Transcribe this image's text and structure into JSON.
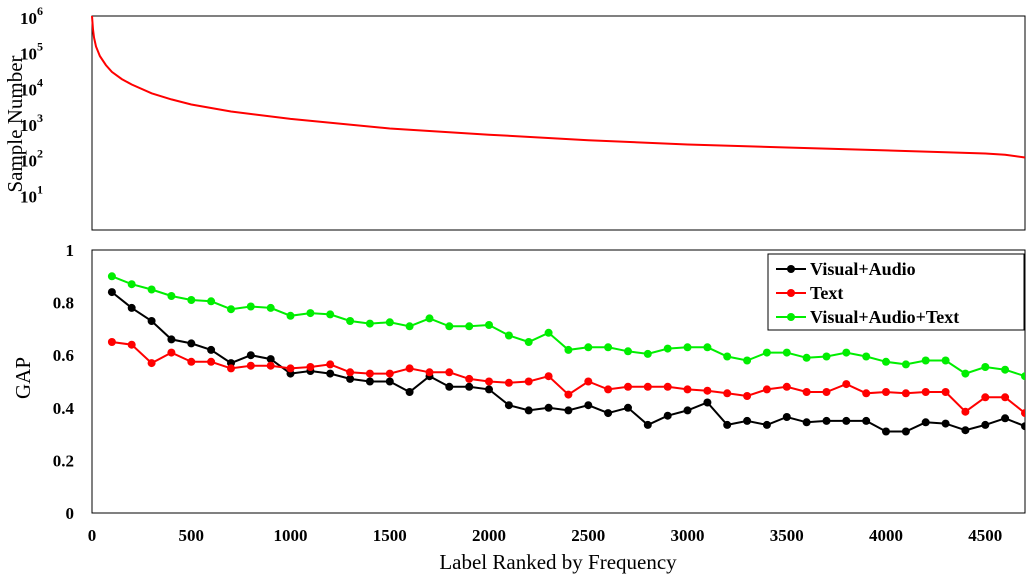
{
  "chart_data": [
    {
      "type": "line",
      "ylabel": "Sample Number",
      "yscale": "log",
      "ylim": [
        1,
        1000000
      ],
      "xlim": [
        0,
        4700
      ],
      "yticks": [
        {
          "base": "10",
          "exp": "6",
          "value": 1000000
        },
        {
          "base": "10",
          "exp": "5",
          "value": 100000
        },
        {
          "base": "10",
          "exp": "4",
          "value": 10000
        },
        {
          "base": "10",
          "exp": "3",
          "value": 1000
        },
        {
          "base": "10",
          "exp": "2",
          "value": 100
        },
        {
          "base": "10",
          "exp": "1",
          "value": 10
        }
      ],
      "grid": false,
      "series": [
        {
          "color": "#ff0000",
          "x": [
            0,
            2,
            5,
            10,
            20,
            40,
            70,
            100,
            150,
            200,
            300,
            400,
            500,
            700,
            1000,
            1500,
            2000,
            2500,
            3000,
            3500,
            4000,
            4300,
            4500,
            4600,
            4700
          ],
          "y": [
            1000000,
            700000,
            420000,
            250000,
            140000,
            75000,
            42000,
            27000,
            17000,
            12000,
            6800,
            4600,
            3300,
            2100,
            1300,
            700,
            470,
            330,
            250,
            205,
            170,
            152,
            140,
            128,
            108
          ]
        }
      ]
    },
    {
      "type": "line",
      "xlabel": "Label Ranked by Frequency",
      "ylabel": "GAP",
      "xlim": [
        0,
        4700
      ],
      "ylim": [
        0,
        1
      ],
      "xticks": [
        "0",
        "500",
        "1000",
        "1500",
        "2000",
        "2500",
        "3000",
        "3500",
        "4000",
        "4500"
      ],
      "yticks": [
        "0",
        "0.2",
        "0.4",
        "0.6",
        "0.8",
        "1"
      ],
      "grid": false,
      "legend_position": "top-right",
      "x": [
        100,
        200,
        300,
        400,
        500,
        600,
        700,
        800,
        900,
        1000,
        1100,
        1200,
        1300,
        1400,
        1500,
        1600,
        1700,
        1800,
        1900,
        2000,
        2100,
        2200,
        2300,
        2400,
        2500,
        2600,
        2700,
        2800,
        2900,
        3000,
        3100,
        3200,
        3300,
        3400,
        3500,
        3600,
        3700,
        3800,
        3900,
        4000,
        4100,
        4200,
        4300,
        4400,
        4500,
        4600,
        4700
      ],
      "series": [
        {
          "name": "Visual+Audio",
          "color": "#000000",
          "values": [
            0.84,
            0.78,
            0.73,
            0.66,
            0.645,
            0.62,
            0.57,
            0.6,
            0.585,
            0.53,
            0.54,
            0.53,
            0.51,
            0.5,
            0.5,
            0.46,
            0.52,
            0.48,
            0.48,
            0.47,
            0.41,
            0.39,
            0.4,
            0.39,
            0.41,
            0.38,
            0.4,
            0.335,
            0.37,
            0.39,
            0.42,
            0.335,
            0.35,
            0.335,
            0.365,
            0.345,
            0.35,
            0.35,
            0.35,
            0.31,
            0.31,
            0.345,
            0.34,
            0.315,
            0.335,
            0.36,
            0.33
          ]
        },
        {
          "name": "Text",
          "color": "#ff0000",
          "values": [
            0.65,
            0.64,
            0.57,
            0.61,
            0.575,
            0.575,
            0.55,
            0.56,
            0.56,
            0.55,
            0.555,
            0.565,
            0.535,
            0.53,
            0.53,
            0.55,
            0.535,
            0.535,
            0.51,
            0.5,
            0.495,
            0.5,
            0.52,
            0.45,
            0.5,
            0.47,
            0.48,
            0.48,
            0.48,
            0.47,
            0.465,
            0.455,
            0.445,
            0.47,
            0.48,
            0.46,
            0.46,
            0.49,
            0.455,
            0.46,
            0.455,
            0.46,
            0.46,
            0.385,
            0.44,
            0.44,
            0.38
          ]
        },
        {
          "name": "Visual+Audio+Text",
          "color": "#00ee00",
          "values": [
            0.9,
            0.87,
            0.85,
            0.825,
            0.81,
            0.805,
            0.775,
            0.785,
            0.78,
            0.75,
            0.76,
            0.755,
            0.73,
            0.72,
            0.725,
            0.71,
            0.74,
            0.71,
            0.71,
            0.715,
            0.675,
            0.65,
            0.685,
            0.62,
            0.63,
            0.63,
            0.615,
            0.605,
            0.625,
            0.63,
            0.63,
            0.595,
            0.58,
            0.61,
            0.61,
            0.59,
            0.595,
            0.61,
            0.595,
            0.575,
            0.565,
            0.58,
            0.58,
            0.53,
            0.555,
            0.545,
            0.52
          ]
        }
      ]
    }
  ]
}
